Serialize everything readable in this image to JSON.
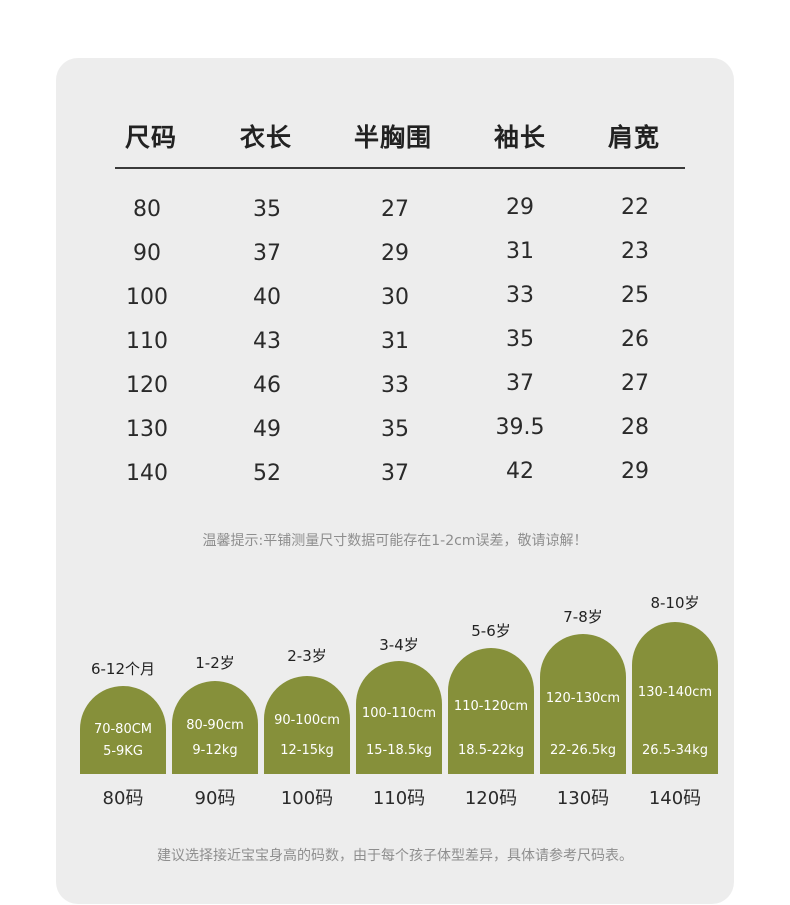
{
  "headers": [
    "尺码",
    "衣长",
    "半胸围",
    "袖长",
    "肩宽"
  ],
  "rows": [
    [
      "80",
      "35",
      "27",
      "29",
      "22"
    ],
    [
      "90",
      "37",
      "29",
      "31",
      "23"
    ],
    [
      "100",
      "40",
      "30",
      "33",
      "25"
    ],
    [
      "110",
      "43",
      "31",
      "35",
      "26"
    ],
    [
      "120",
      "46",
      "33",
      "37",
      "27"
    ],
    [
      "130",
      "49",
      "35",
      "39.5",
      "28"
    ],
    [
      "140",
      "52",
      "37",
      "42",
      "29"
    ]
  ],
  "note_top": "温馨提示:平铺测量尺寸数据可能存在1-2cm误差，敬请谅解！",
  "sizes": [
    {
      "age": "6-12个月",
      "height": "70-80CM",
      "weight": "5-9KG",
      "code": "80码"
    },
    {
      "age": "1-2岁",
      "height": "80-90cm",
      "weight": "9-12kg",
      "code": "90码"
    },
    {
      "age": "2-3岁",
      "height": "90-100cm",
      "weight": "12-15kg",
      "code": "100码"
    },
    {
      "age": "3-4岁",
      "height": "100-110cm",
      "weight": "15-18.5kg",
      "code": "110码"
    },
    {
      "age": "5-6岁",
      "height": "110-120cm",
      "weight": "18.5-22kg",
      "code": "120码"
    },
    {
      "age": "7-8岁",
      "height": "120-130cm",
      "weight": "22-26.5kg",
      "code": "130码"
    },
    {
      "age": "8-10岁",
      "height": "130-140cm",
      "weight": "26.5-34kg",
      "code": "140码"
    }
  ],
  "note_bottom": "建议选择接近宝宝身高的码数，由于每个孩子体型差异，具体请参考尺码表。",
  "colors": {
    "arch": "#86903a",
    "card": "#ededed"
  }
}
